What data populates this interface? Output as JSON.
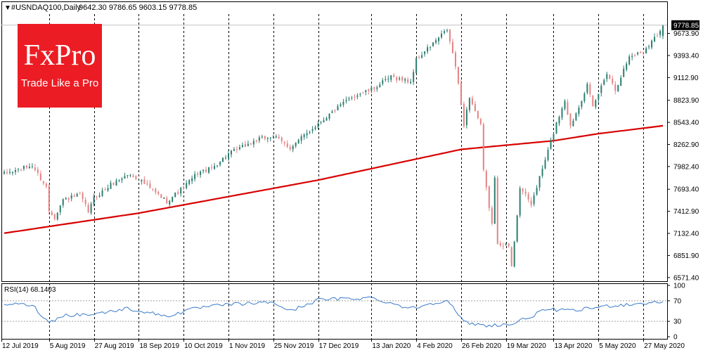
{
  "header": {
    "symbol_label": "#USNDAQ100,Daily",
    "ohlc_label": "9642.30 9786.65 9603.15 9778.85",
    "last_price": "9778.85"
  },
  "logo": {
    "brand": "FxPro",
    "tagline": "Trade Like a Pro",
    "bg": "#ec1c24"
  },
  "rsi_panel": {
    "label": "RSI(14) 68.1403"
  },
  "colors": {
    "bull": "#2c7d70",
    "bear": "#e48383",
    "ma": "#d80000",
    "rsi": "#3a7bc8",
    "grid": "#000000",
    "axis_text": "#000000",
    "last_price_bg": "#000000"
  },
  "chart_data": [
    {
      "type": "candlestick",
      "title": "#USNDAQ100,Daily",
      "ylim": [
        6525,
        9920
      ],
      "y_ticks": [
        "9673.90",
        "9393.40",
        "9112.90",
        "8823.90",
        "8543.40",
        "8262.90",
        "7982.40",
        "7693.40",
        "7412.90",
        "7132.40",
        "6851.90",
        "6571.40"
      ],
      "x_ticks": [
        "12 Jul 2019",
        "5 Aug 2019",
        "27 Aug 2019",
        "18 Sep 2019",
        "10 Oct 2019",
        "1 Nov 2019",
        "25 Nov 2019",
        "17 Dec 2019",
        "13 Jan 2020",
        "4 Feb 2020",
        "26 Feb 2020",
        "19 Mar 2020",
        "13 Apr 2020",
        "5 May 2020",
        "27 May 2020"
      ],
      "last": 9778.85,
      "anchors": [
        [
          "2019-07-12",
          7890
        ],
        [
          "2019-07-26",
          7995
        ],
        [
          "2019-08-02",
          7720
        ],
        [
          "2019-08-05",
          7420
        ],
        [
          "2019-08-07",
          7340
        ],
        [
          "2019-08-12",
          7560
        ],
        [
          "2019-08-20",
          7620
        ],
        [
          "2019-08-23",
          7410
        ],
        [
          "2019-08-27",
          7580
        ],
        [
          "2019-09-04",
          7750
        ],
        [
          "2019-09-12",
          7880
        ],
        [
          "2019-09-18",
          7830
        ],
        [
          "2019-09-24",
          7700
        ],
        [
          "2019-10-02",
          7540
        ],
        [
          "2019-10-10",
          7720
        ],
        [
          "2019-10-17",
          7900
        ],
        [
          "2019-10-24",
          7960
        ],
        [
          "2019-11-01",
          8140
        ],
        [
          "2019-11-15",
          8320
        ],
        [
          "2019-11-25",
          8370
        ],
        [
          "2019-12-03",
          8220
        ],
        [
          "2019-12-17",
          8530
        ],
        [
          "2020-01-02",
          8870
        ],
        [
          "2020-01-13",
          8960
        ],
        [
          "2020-01-22",
          9120
        ],
        [
          "2020-01-31",
          9060
        ],
        [
          "2020-02-04",
          9340
        ],
        [
          "2020-02-19",
          9720
        ],
        [
          "2020-02-24",
          9260
        ],
        [
          "2020-02-27",
          8520
        ],
        [
          "2020-03-02",
          8870
        ],
        [
          "2020-03-06",
          8500
        ],
        [
          "2020-03-09",
          7920
        ],
        [
          "2020-03-12",
          7250
        ],
        [
          "2020-03-13",
          7820
        ],
        [
          "2020-03-16",
          7020
        ],
        [
          "2020-03-20",
          6970
        ],
        [
          "2020-03-23",
          6700
        ],
        [
          "2020-03-26",
          7720
        ],
        [
          "2020-04-01",
          7500
        ],
        [
          "2020-04-09",
          8180
        ],
        [
          "2020-04-14",
          8530
        ],
        [
          "2020-04-17",
          8830
        ],
        [
          "2020-04-21",
          8490
        ],
        [
          "2020-04-29",
          9020
        ],
        [
          "2020-05-01",
          8730
        ],
        [
          "2020-05-08",
          9180
        ],
        [
          "2020-05-13",
          8960
        ],
        [
          "2020-05-20",
          9380
        ],
        [
          "2020-05-27",
          9450
        ],
        [
          "2020-06-03",
          9660
        ],
        [
          "2020-06-05",
          9778.85
        ]
      ],
      "ma_anchors": [
        [
          "2019-07-12",
          7135
        ],
        [
          "2019-09-18",
          7390
        ],
        [
          "2019-12-17",
          7810
        ],
        [
          "2020-02-26",
          8200
        ],
        [
          "2020-03-13",
          8240
        ],
        [
          "2020-04-13",
          8310
        ],
        [
          "2020-05-05",
          8400
        ],
        [
          "2020-06-05",
          8500
        ]
      ]
    },
    {
      "type": "line",
      "title": "RSI(14) 68.1403",
      "ylim": [
        0,
        100
      ],
      "y_ticks": [
        "100",
        "70",
        "30",
        "0"
      ],
      "levels": [
        70,
        30
      ],
      "last": 68.1403,
      "anchors": [
        [
          "2019-07-12",
          64
        ],
        [
          "2019-07-26",
          62
        ],
        [
          "2019-08-05",
          27
        ],
        [
          "2019-08-12",
          42
        ],
        [
          "2019-08-27",
          44
        ],
        [
          "2019-09-12",
          55
        ],
        [
          "2019-10-02",
          40
        ],
        [
          "2019-10-17",
          56
        ],
        [
          "2019-11-01",
          63
        ],
        [
          "2019-11-25",
          67
        ],
        [
          "2019-12-03",
          50
        ],
        [
          "2019-12-17",
          72
        ],
        [
          "2020-01-13",
          76
        ],
        [
          "2020-01-31",
          55
        ],
        [
          "2020-02-19",
          72
        ],
        [
          "2020-02-27",
          28
        ],
        [
          "2020-03-09",
          22
        ],
        [
          "2020-03-23",
          24
        ],
        [
          "2020-04-09",
          54
        ],
        [
          "2020-04-21",
          50
        ],
        [
          "2020-05-08",
          60
        ],
        [
          "2020-05-20",
          63
        ],
        [
          "2020-06-05",
          68
        ]
      ]
    }
  ]
}
